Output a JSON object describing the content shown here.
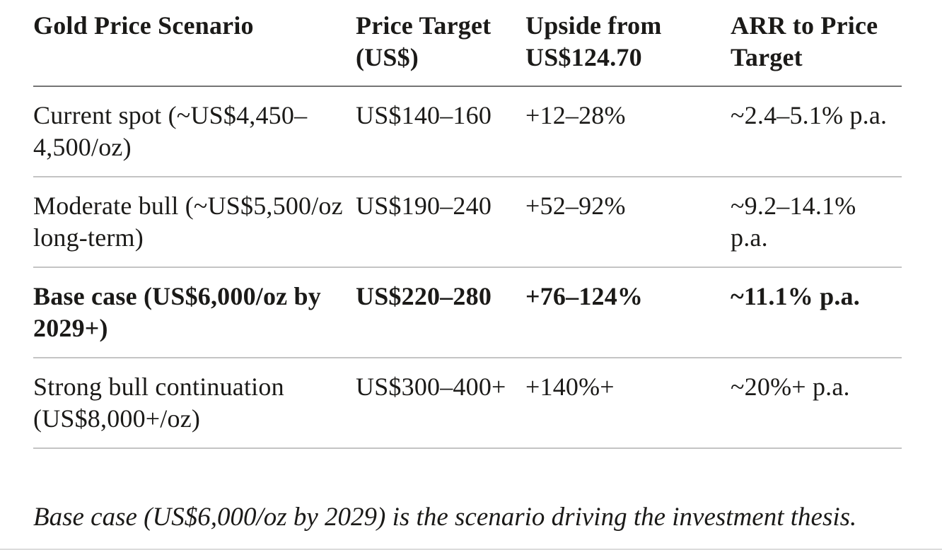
{
  "colors": {
    "background": "#ffffff",
    "text": "#1b1a18",
    "header_rule": "#757575",
    "row_rule": "#c4c4c4"
  },
  "table": {
    "columns": [
      "Gold Price Scenario",
      "Price Target (US$)",
      "Upside from US$124.70",
      "ARR to Price Target"
    ],
    "rows": [
      {
        "scenario": "Current spot (~US$4,450–4,500/oz)",
        "price_target": "US$140–160",
        "upside": "+12–28%",
        "arr": "~2.4–5.1% p.a.",
        "emphasis": false
      },
      {
        "scenario": "Moderate bull (~US$5,500/oz long-term)",
        "price_target": "US$190–240",
        "upside": "+52–92%",
        "arr": "~9.2–14.1% p.a.",
        "emphasis": false
      },
      {
        "scenario": "Base case (US$6,000/oz by 2029+)",
        "price_target": "US$220–280",
        "upside": "+76–124%",
        "arr": "~11.1% p.a.",
        "emphasis": true
      },
      {
        "scenario": "Strong bull continuation (US$8,000+/oz)",
        "price_target": "US$300–400+",
        "upside": "+140%+",
        "arr": "~20%+ p.a.",
        "emphasis": false
      }
    ]
  },
  "footnote": "Base case (US$6,000/oz by 2029) is the scenario driving the investment thesis."
}
